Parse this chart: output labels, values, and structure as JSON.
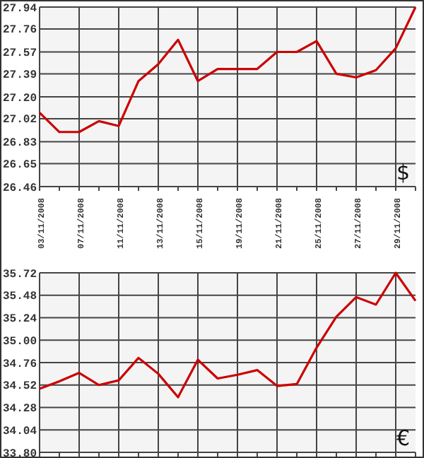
{
  "chart_data": [
    {
      "type": "line",
      "categories": [
        "03/11/2008",
        null,
        "07/11/2008",
        null,
        "11/11/2008",
        null,
        "13/11/2008",
        null,
        "15/11/2008",
        null,
        "19/11/2008",
        null,
        "21/11/2008",
        null,
        "25/11/2008",
        null,
        "27/11/2008",
        null,
        "29/11/2008",
        null
      ],
      "series": [
        {
          "color": "#cc0000",
          "values": [
            27.07,
            26.91,
            26.91,
            27.0,
            26.96,
            27.33,
            27.47,
            27.67,
            27.33,
            27.43,
            27.43,
            27.43,
            27.57,
            27.57,
            27.66,
            27.39,
            27.36,
            27.42,
            27.6,
            27.94
          ]
        }
      ],
      "ylim": [
        26.46,
        27.94
      ],
      "yticks": [
        26.46,
        26.65,
        26.83,
        27.02,
        {
          "value": 27.2,
          "label": "27.20"
        },
        27.39,
        27.57,
        27.76,
        27.94
      ],
      "grid": true,
      "marker": "none",
      "annotations": [
        "$"
      ]
    },
    {
      "type": "line",
      "categories": [
        null,
        null,
        null,
        null,
        null,
        null,
        null,
        null,
        null,
        null,
        null,
        null,
        null,
        null,
        null,
        null,
        null,
        null,
        null,
        null
      ],
      "series": [
        {
          "color": "#cc0000",
          "values": [
            34.48,
            34.56,
            34.65,
            34.52,
            34.57,
            34.81,
            34.64,
            34.39,
            34.79,
            34.59,
            34.63,
            34.68,
            34.51,
            34.53,
            34.92,
            35.25,
            35.46,
            35.38,
            35.72,
            35.42
          ]
        }
      ],
      "ylim": [
        33.8,
        35.72
      ],
      "yticks": [
        {
          "value": 33.8,
          "label": "33.80"
        },
        34.04,
        34.28,
        34.52,
        34.76,
        {
          "value": 35.0,
          "label": "35.00"
        },
        35.24,
        35.48,
        35.72
      ],
      "grid": true,
      "marker": "none",
      "tick_labels": "y",
      "annotations": [
        "€"
      ]
    }
  ]
}
